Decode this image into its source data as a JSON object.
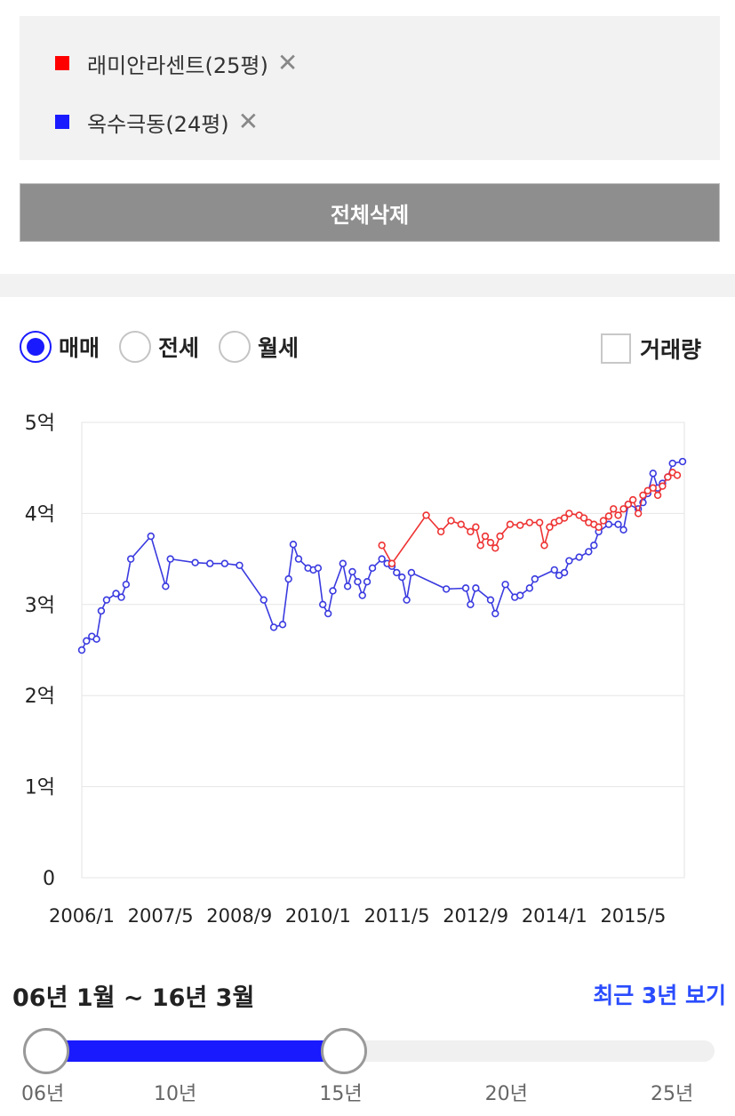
{
  "legend": {
    "items": [
      {
        "label": "래미안라센트(25평)",
        "color": "#ff0000",
        "remove": "✕"
      },
      {
        "label": "옥수극동(24평)",
        "color": "#1a1aff",
        "remove": "✕"
      }
    ]
  },
  "delete_all_label": "전체삭제",
  "trade_types": [
    {
      "label": "매매",
      "selected": true
    },
    {
      "label": "전세",
      "selected": false
    },
    {
      "label": "월세",
      "selected": false
    }
  ],
  "volume_label": "거래량",
  "chart_data": {
    "type": "line",
    "y_ticks": [
      "0",
      "1억",
      "2억",
      "3억",
      "4억",
      "5억"
    ],
    "ylim": [
      0,
      5
    ],
    "x_ticks": [
      "2006/1",
      "2007/5",
      "2008/9",
      "2010/1",
      "2011/5",
      "2012/9",
      "2014/1",
      "2015/5"
    ],
    "xlim": [
      2006.0,
      2016.2
    ],
    "grid": true,
    "series": [
      {
        "name": "옥수극동(24평)",
        "color": "#3a3ae0",
        "points": [
          [
            2006.0,
            2.5
          ],
          [
            2006.08,
            2.6
          ],
          [
            2006.17,
            2.65
          ],
          [
            2006.25,
            2.62
          ],
          [
            2006.33,
            2.93
          ],
          [
            2006.42,
            3.05
          ],
          [
            2006.58,
            3.12
          ],
          [
            2006.67,
            3.08
          ],
          [
            2006.75,
            3.22
          ],
          [
            2006.83,
            3.5
          ],
          [
            2007.17,
            3.75
          ],
          [
            2007.42,
            3.2
          ],
          [
            2007.5,
            3.5
          ],
          [
            2007.92,
            3.46
          ],
          [
            2008.17,
            3.45
          ],
          [
            2008.42,
            3.45
          ],
          [
            2008.67,
            3.43
          ],
          [
            2009.08,
            3.05
          ],
          [
            2009.25,
            2.75
          ],
          [
            2009.4,
            2.78
          ],
          [
            2009.5,
            3.28
          ],
          [
            2009.58,
            3.66
          ],
          [
            2009.67,
            3.5
          ],
          [
            2009.83,
            3.4
          ],
          [
            2009.92,
            3.38
          ],
          [
            2010.0,
            3.4
          ],
          [
            2010.08,
            3.0
          ],
          [
            2010.17,
            2.9
          ],
          [
            2010.25,
            3.15
          ],
          [
            2010.42,
            3.45
          ],
          [
            2010.5,
            3.2
          ],
          [
            2010.58,
            3.36
          ],
          [
            2010.67,
            3.25
          ],
          [
            2010.75,
            3.1
          ],
          [
            2010.83,
            3.25
          ],
          [
            2010.92,
            3.4
          ],
          [
            2011.08,
            3.5
          ],
          [
            2011.17,
            3.45
          ],
          [
            2011.25,
            3.42
          ],
          [
            2011.33,
            3.35
          ],
          [
            2011.42,
            3.3
          ],
          [
            2011.5,
            3.05
          ],
          [
            2011.58,
            3.35
          ],
          [
            2012.17,
            3.17
          ],
          [
            2012.5,
            3.18
          ],
          [
            2012.58,
            3.0
          ],
          [
            2012.67,
            3.18
          ],
          [
            2012.92,
            3.05
          ],
          [
            2013.0,
            2.9
          ],
          [
            2013.17,
            3.22
          ],
          [
            2013.33,
            3.08
          ],
          [
            2013.42,
            3.1
          ],
          [
            2013.58,
            3.18
          ],
          [
            2013.67,
            3.28
          ],
          [
            2014.0,
            3.38
          ],
          [
            2014.08,
            3.32
          ],
          [
            2014.17,
            3.35
          ],
          [
            2014.25,
            3.48
          ],
          [
            2014.42,
            3.52
          ],
          [
            2014.58,
            3.58
          ],
          [
            2014.67,
            3.65
          ],
          [
            2014.75,
            3.8
          ],
          [
            2014.92,
            3.88
          ],
          [
            2015.08,
            3.88
          ],
          [
            2015.17,
            3.82
          ],
          [
            2015.25,
            4.1
          ],
          [
            2015.42,
            4.05
          ],
          [
            2015.5,
            4.12
          ],
          [
            2015.58,
            4.22
          ],
          [
            2015.67,
            4.44
          ],
          [
            2015.75,
            4.28
          ],
          [
            2015.83,
            4.33
          ],
          [
            2015.92,
            4.4
          ],
          [
            2016.0,
            4.55
          ],
          [
            2016.17,
            4.57
          ]
        ]
      },
      {
        "name": "래미안라센트(25평)",
        "color": "#ee3333",
        "points": [
          [
            2011.08,
            3.65
          ],
          [
            2011.25,
            3.45
          ],
          [
            2011.83,
            3.98
          ],
          [
            2012.08,
            3.8
          ],
          [
            2012.25,
            3.92
          ],
          [
            2012.42,
            3.88
          ],
          [
            2012.58,
            3.8
          ],
          [
            2012.67,
            3.85
          ],
          [
            2012.75,
            3.65
          ],
          [
            2012.83,
            3.75
          ],
          [
            2012.92,
            3.68
          ],
          [
            2013.0,
            3.62
          ],
          [
            2013.08,
            3.75
          ],
          [
            2013.25,
            3.88
          ],
          [
            2013.42,
            3.87
          ],
          [
            2013.58,
            3.9
          ],
          [
            2013.75,
            3.9
          ],
          [
            2013.83,
            3.65
          ],
          [
            2013.92,
            3.85
          ],
          [
            2014.0,
            3.9
          ],
          [
            2014.08,
            3.92
          ],
          [
            2014.17,
            3.95
          ],
          [
            2014.25,
            4.0
          ],
          [
            2014.42,
            3.98
          ],
          [
            2014.5,
            3.95
          ],
          [
            2014.58,
            3.9
          ],
          [
            2014.67,
            3.88
          ],
          [
            2014.75,
            3.85
          ],
          [
            2014.83,
            3.92
          ],
          [
            2014.92,
            3.97
          ],
          [
            2015.0,
            4.05
          ],
          [
            2015.08,
            3.98
          ],
          [
            2015.17,
            4.05
          ],
          [
            2015.25,
            4.1
          ],
          [
            2015.33,
            4.15
          ],
          [
            2015.42,
            4.0
          ],
          [
            2015.5,
            4.2
          ],
          [
            2015.58,
            4.25
          ],
          [
            2015.67,
            4.28
          ],
          [
            2015.75,
            4.2
          ],
          [
            2015.83,
            4.3
          ],
          [
            2015.92,
            4.4
          ],
          [
            2016.0,
            4.45
          ],
          [
            2016.08,
            4.42
          ]
        ]
      }
    ]
  },
  "range": {
    "label": "06년 1월 ~ 16년 3월",
    "recent_link": "최근 3년 보기",
    "start_year": 6,
    "end_year": 15,
    "min_year": 6,
    "max_year": 25,
    "ticks": [
      "06년",
      "10년",
      "15년",
      "20년",
      "25년"
    ]
  }
}
